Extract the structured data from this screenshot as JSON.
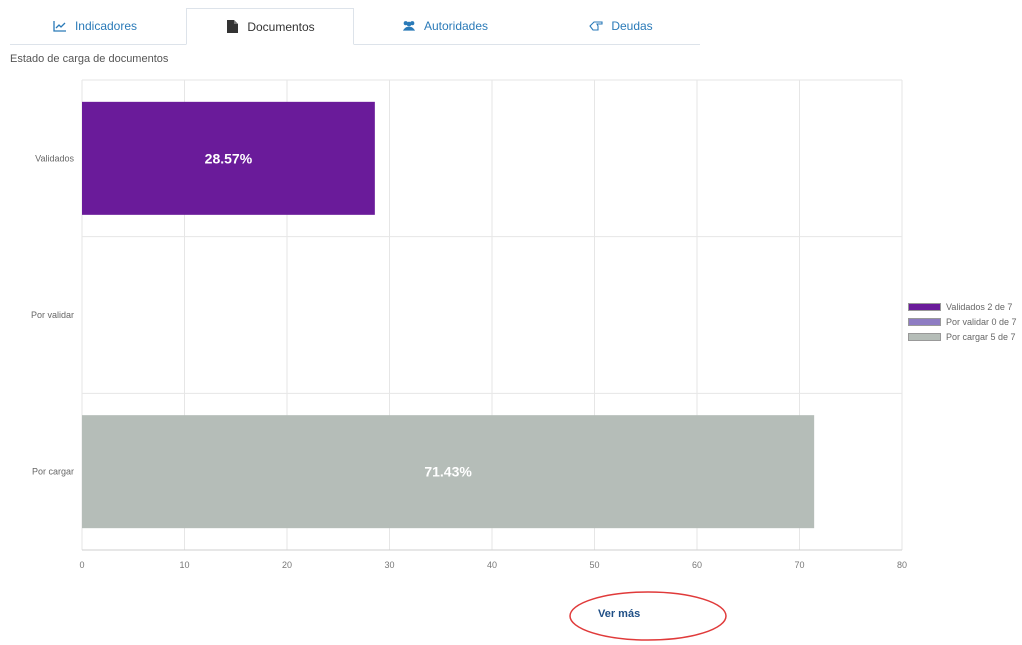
{
  "tabs": [
    {
      "label": "Indicadores",
      "icon": "line-chart-icon",
      "active": false
    },
    {
      "label": "Documentos",
      "icon": "file-icon",
      "active": true
    },
    {
      "label": "Autoridades",
      "icon": "users-icon",
      "active": false
    },
    {
      "label": "Deudas",
      "icon": "hand-point-icon",
      "active": false
    }
  ],
  "subtitle": "Estado de carga de documentos",
  "more_link": "Ver más",
  "colors": {
    "validados": "#6a1b9a",
    "por_validar": "#8e7cc3",
    "por_cargar": "#b5bdb8",
    "tab_link": "#2a7ab8",
    "annotation_circle": "#e03a3a"
  },
  "chart_data": {
    "type": "bar",
    "orientation": "horizontal",
    "categories": [
      "Validados",
      "Por validar",
      "Por cargar"
    ],
    "values": [
      28.57,
      0,
      71.43
    ],
    "data_labels": [
      "28.57%",
      "",
      "71.43%"
    ],
    "xlim": [
      0,
      80
    ],
    "xticks": [
      "0",
      "10",
      "20",
      "30",
      "40",
      "50",
      "60",
      "70",
      "80"
    ],
    "grid": true,
    "legend_position": "right",
    "legend": [
      "Validados 2 de 7",
      "Por validar 0 de 7",
      "Por cargar 5 de 7"
    ]
  }
}
